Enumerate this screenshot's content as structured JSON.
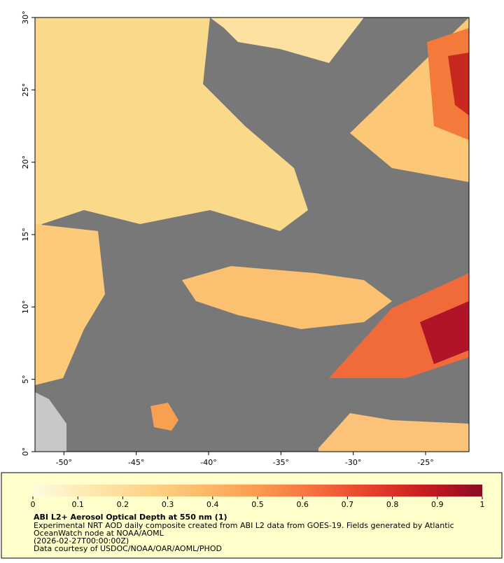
{
  "map": {
    "xlim": [
      -52,
      -22
    ],
    "ylim": [
      0,
      30
    ],
    "xticks": [
      {
        "value": -50,
        "label": "-50°"
      },
      {
        "value": -45,
        "label": "-45°"
      },
      {
        "value": -40,
        "label": "-40°"
      },
      {
        "value": -35,
        "label": "-35°"
      },
      {
        "value": -30,
        "label": "-30°"
      },
      {
        "value": -25,
        "label": "-25°"
      }
    ],
    "yticks": [
      {
        "value": 0,
        "label": "0°"
      },
      {
        "value": 5,
        "label": "5°"
      },
      {
        "value": 10,
        "label": "10°"
      },
      {
        "value": 15,
        "label": "15°"
      },
      {
        "value": 20,
        "label": "20°"
      },
      {
        "value": 25,
        "label": "25°"
      },
      {
        "value": 30,
        "label": "30°"
      }
    ]
  },
  "legend": {
    "range": [
      0,
      1
    ],
    "ticks": [
      0,
      0.1,
      0.2,
      0.3,
      0.4,
      0.5,
      0.6,
      0.7,
      0.8,
      0.9,
      1
    ],
    "colors": [
      "#fffbe0",
      "#fde9b0",
      "#fdd58a",
      "#fcbc6a",
      "#fb9b50",
      "#f6703f",
      "#e8402c",
      "#c81a1f",
      "#8c0c24"
    ],
    "title": "ABI L2+ Aerosol Optical Depth at 550 nm (1)",
    "lines": [
      "Experimental NRT AOD daily composite created from ABI L2 data from GOES-19. Fields generated by Atlantic",
      "OceanWatch node at NOAA/AOML",
      "(2026-02-27T00:00:00Z)",
      "Data courtesy of USDOC/NOAA/OAR/AOML/PHOD"
    ]
  }
}
